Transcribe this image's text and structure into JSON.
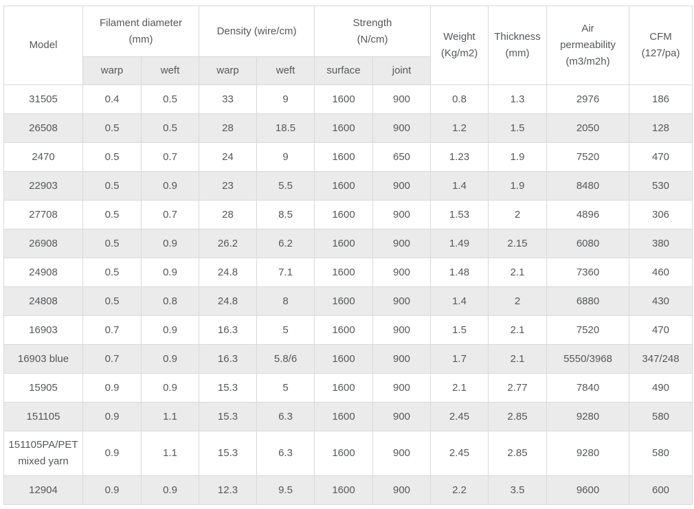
{
  "table": {
    "header": {
      "model": "Model",
      "filament_diameter": "Filament diameter\n(mm)",
      "density": "Density (wire/cm)",
      "strength": "Strength\n(N/cm)",
      "weight": "Weight\n(Kg/m2)",
      "thickness": "Thickness\n(mm)",
      "air_permeability": "Air\npermeability\n(m3/m2h)",
      "cfm": "CFM\n(127/pa)"
    },
    "subheader": [
      "warp",
      "weft",
      "warp",
      "weft",
      "surface",
      "joint"
    ],
    "rows": [
      [
        "31505",
        "0.4",
        "0.5",
        "33",
        "9",
        "1600",
        "900",
        "0.8",
        "1.3",
        "2976",
        "186"
      ],
      [
        "26508",
        "0.5",
        "0.5",
        "28",
        "18.5",
        "1600",
        "900",
        "1.2",
        "1.5",
        "2050",
        "128"
      ],
      [
        "2470",
        "0.5",
        "0.7",
        "24",
        "9",
        "1600",
        "650",
        "1.23",
        "1.9",
        "7520",
        "470"
      ],
      [
        "22903",
        "0.5",
        "0.9",
        "23",
        "5.5",
        "1600",
        "900",
        "1.4",
        "1.9",
        "8480",
        "530"
      ],
      [
        "27708",
        "0.5",
        "0.7",
        "28",
        "8.5",
        "1600",
        "900",
        "1.53",
        "2",
        "4896",
        "306"
      ],
      [
        "26908",
        "0.5",
        "0.9",
        "26.2",
        "6.2",
        "1600",
        "900",
        "1.49",
        "2.15",
        "6080",
        "380"
      ],
      [
        "24908",
        "0.5",
        "0.9",
        "24.8",
        "7.1",
        "1600",
        "900",
        "1.48",
        "2.1",
        "7360",
        "460"
      ],
      [
        "24808",
        "0.5",
        "0.8",
        "24.8",
        "8",
        "1600",
        "900",
        "1.4",
        "2",
        "6880",
        "430"
      ],
      [
        "16903",
        "0.7",
        "0.9",
        "16.3",
        "5",
        "1600",
        "900",
        "1.5",
        "2.1",
        "7520",
        "470"
      ],
      [
        "16903 blue",
        "0.7",
        "0.9",
        "16.3",
        "5.8/6",
        "1600",
        "900",
        "1.7",
        "2.1",
        "5550/3968",
        "347/248"
      ],
      [
        "15905",
        "0.9",
        "0.9",
        "15.3",
        "5",
        "1600",
        "900",
        "2.1",
        "2.77",
        "7840",
        "490"
      ],
      [
        "151105",
        "0.9",
        "1.1",
        "15.3",
        "6.3",
        "1600",
        "900",
        "2.45",
        "2.85",
        "9280",
        "580"
      ],
      [
        "151105PA/PET mixed yarn",
        "0.9",
        "1.1",
        "15.3",
        "6.3",
        "1600",
        "900",
        "2.45",
        "2.85",
        "9280",
        "580"
      ],
      [
        "12904",
        "0.9",
        "0.9",
        "12.3",
        "9.5",
        "1600",
        "900",
        "2.2",
        "3.5",
        "9600",
        "600"
      ]
    ],
    "colors": {
      "stripe_background": "#ebebeb",
      "subheader_background": "#ebebeb",
      "border": "#d9d9d9",
      "text": "#555759",
      "background": "#ffffff"
    }
  }
}
